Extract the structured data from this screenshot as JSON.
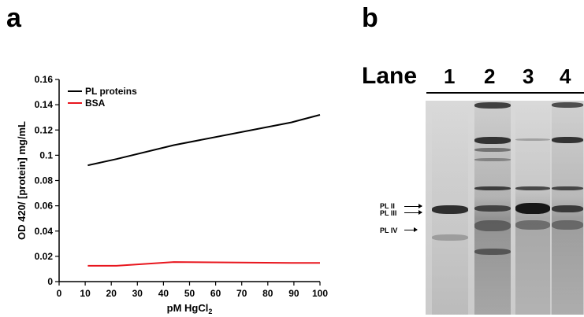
{
  "panel_a": {
    "label": "a"
  },
  "panel_b": {
    "label": "b",
    "lane_title": "Lane",
    "lanes": [
      "1",
      "2",
      "3",
      "4"
    ],
    "markers": [
      "PL II",
      "PL III",
      "PL IV"
    ]
  },
  "chart_data": {
    "type": "line",
    "xlabel": "pM HgCl",
    "xlabel_subscript": "2",
    "ylabel": "OD 420/ [protein] mg/mL",
    "xlim": [
      0,
      100
    ],
    "ylim": [
      0,
      0.16
    ],
    "x_ticks": [
      "0",
      "10",
      "20",
      "30",
      "40",
      "50",
      "60",
      "70",
      "80",
      "90",
      "100"
    ],
    "y_ticks": [
      "0",
      "0.02",
      "0.04",
      "0.06",
      "0.08",
      "0.1",
      "0.12",
      "0.14",
      "0.16"
    ],
    "legend_position": "top-left",
    "grid": false,
    "series": [
      {
        "name": "PL proteins",
        "color": "#000000",
        "x": [
          11,
          22,
          44,
          89,
          100
        ],
        "y": [
          0.092,
          0.097,
          0.108,
          0.126,
          0.132
        ]
      },
      {
        "name": "BSA",
        "color": "#e8161e",
        "x": [
          11,
          22,
          44,
          89,
          100
        ],
        "y": [
          0.0125,
          0.0125,
          0.0155,
          0.0148,
          0.0148
        ]
      }
    ]
  }
}
